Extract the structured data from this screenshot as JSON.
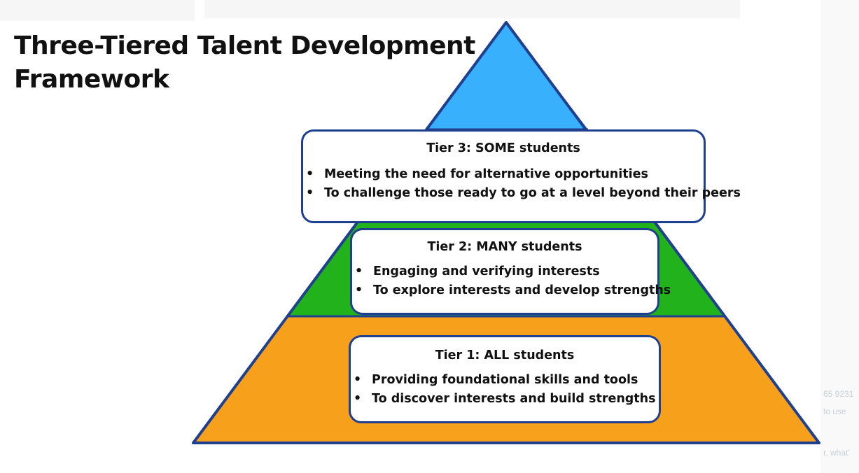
{
  "title": "Three-Tiered Talent Development Framework",
  "colors": {
    "apex": "#38b0fb",
    "tier2_band": "#21b21c",
    "tier1_band": "#f7a01c",
    "outline": "#1f3f8f",
    "box_fill": "#ffffff"
  },
  "bullet_glyph": "•",
  "tiers": [
    {
      "title": "Tier 3: SOME students",
      "bullets": [
        "Meeting the need for alternative opportunities",
        "To challenge those ready to go at a level beyond their peers"
      ]
    },
    {
      "title": "Tier 2: MANY students",
      "bullets": [
        "Engaging and verifying interests",
        "To explore interests and develop strengths"
      ]
    },
    {
      "title": "Tier 1: ALL students",
      "bullets": [
        "Providing foundational skills and tools",
        "To discover interests and build strengths"
      ]
    }
  ],
  "edge_fragments": [
    "65 9231",
    "to use",
    "r, what'"
  ]
}
